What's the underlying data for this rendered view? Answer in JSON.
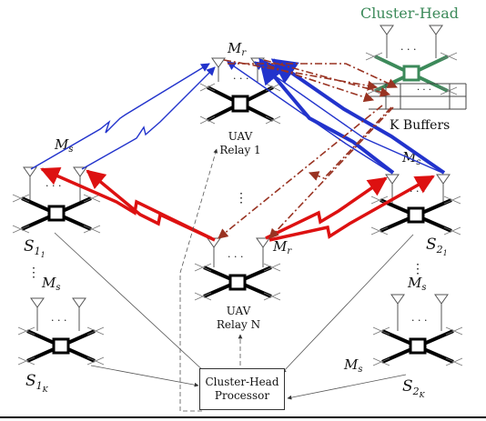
{
  "cluster_head": {
    "title": "Cluster-Head",
    "buffers_label": "K Buffers",
    "antennas_label": "M",
    "antennas_sub": "s",
    "color": "#3c8a5a"
  },
  "relay_1": {
    "line1": "UAV",
    "line2": "Relay 1",
    "antennas_label": "M",
    "antennas_sub": "r"
  },
  "relay_n": {
    "line1": "UAV",
    "line2": "Relay N",
    "antennas_label": "M",
    "antennas_sub": "r"
  },
  "source_1_1": {
    "label": "S",
    "sub": "1",
    "subsub": "1",
    "antennas_label": "M",
    "antennas_sub": "s"
  },
  "source_1_k": {
    "label": "S",
    "sub": "1",
    "subsub": "K",
    "antennas_label": "M",
    "antennas_sub": "s"
  },
  "source_2_1": {
    "label": "S",
    "sub": "2",
    "subsub": "1",
    "antennas_label": "M",
    "antennas_sub": "s"
  },
  "source_2_k": {
    "label": "S",
    "sub": "2",
    "subsub": "K",
    "antennas_label": "M",
    "antennas_sub": "s"
  },
  "ellipsis": "· · ·",
  "vdots": "⋮",
  "processor": {
    "line1": "Cluster-Head",
    "line2": "Processor"
  },
  "colors": {
    "uplink": "#2233cc",
    "source_link": "#dd1111",
    "relay_link": "#993322",
    "drone": "#000000",
    "green": "#3c8a5a"
  }
}
